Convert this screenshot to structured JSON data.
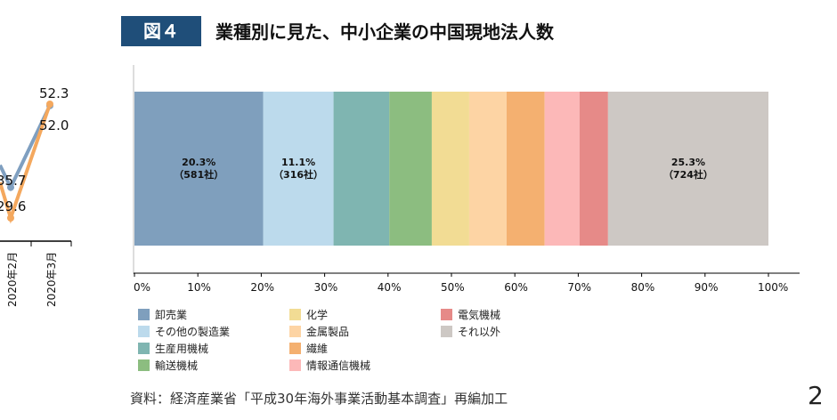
{
  "header": {
    "badge": "図４",
    "title": "業種別に見た、中小企業の中国現地法人数"
  },
  "chart_data": [
    {
      "type": "line",
      "note_visible": "partially cropped",
      "categories": [
        "2020年2月",
        "2020年3月"
      ],
      "series": [
        {
          "color": "#7f9fc0",
          "values": [
            35.7,
            52.0
          ]
        },
        {
          "color": "#f4a85e",
          "values": [
            29.6,
            52.3
          ]
        }
      ]
    },
    {
      "type": "bar",
      "stacked": true,
      "orientation": "horizontal",
      "xlim": [
        0,
        100
      ],
      "ticks": [
        "0%",
        "10%",
        "20%",
        "30%",
        "40%",
        "50%",
        "60%",
        "70%",
        "80%",
        "90%",
        "100%"
      ],
      "legend_position": "bottom",
      "series": [
        {
          "name": "卸売業",
          "value": 20.3,
          "color": "#7f9fbd",
          "label": "20.3%",
          "sublabel": "（581社）"
        },
        {
          "name": "その他の製造業",
          "value": 11.1,
          "color": "#bcdaec",
          "label": "11.1%",
          "sublabel": "（316社）"
        },
        {
          "name": "生産用機械",
          "value": 8.8,
          "color": "#7fb5b1"
        },
        {
          "name": "輸送機械",
          "value": 6.7,
          "color": "#8cbd80"
        },
        {
          "name": "化学",
          "value": 5.9,
          "color": "#f2dc94"
        },
        {
          "name": "金属製品",
          "value": 5.9,
          "color": "#fdd4a4"
        },
        {
          "name": "繊維",
          "value": 6.0,
          "color": "#f4b070"
        },
        {
          "name": "情報通信機械",
          "value": 5.5,
          "color": "#fcb8b8"
        },
        {
          "name": "電気機械",
          "value": 4.5,
          "color": "#e68a88"
        },
        {
          "name": "それ以外",
          "value": 25.3,
          "color": "#cdc8c4",
          "label": "25.3%",
          "sublabel": "（724社）"
        }
      ]
    }
  ],
  "footer": {
    "source": "資料：経済産業省「平成30年海外事業活動基本調査」再編加工",
    "page": "2"
  }
}
